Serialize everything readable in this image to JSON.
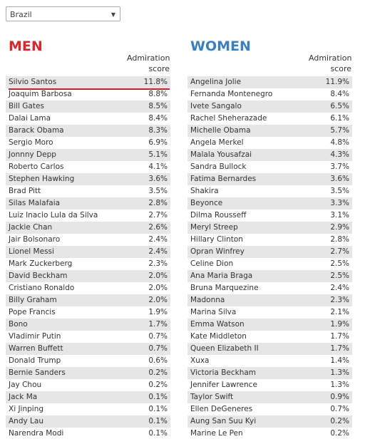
{
  "dropdown": {
    "selected": "Brazil"
  },
  "men": {
    "title": "MEN",
    "score_header": "Admiration score",
    "rows": [
      [
        "Silvio Santos",
        "11.8%"
      ],
      [
        "Joaquim Barbosa",
        "8.8%"
      ],
      [
        "Bill Gates",
        "8.5%"
      ],
      [
        "Dalai Lama",
        "8.4%"
      ],
      [
        "Barack Obama",
        "8.3%"
      ],
      [
        "Sergio Moro",
        "6.9%"
      ],
      [
        "Jonnny Depp",
        "5.1%"
      ],
      [
        "Roberto Carlos",
        "4.1%"
      ],
      [
        "Stephen Hawking",
        "3.6%"
      ],
      [
        "Brad Pitt",
        "3.5%"
      ],
      [
        "Silas Malafaia",
        "2.8%"
      ],
      [
        "Luiz Inacio Lula da Silva",
        "2.7%"
      ],
      [
        "Jackie Chan",
        "2.6%"
      ],
      [
        "Jair Bolsonaro",
        "2.4%"
      ],
      [
        "Lionel Messi",
        "2.4%"
      ],
      [
        "Mark Zuckerberg",
        "2.3%"
      ],
      [
        "David Beckham",
        "2.0%"
      ],
      [
        "Cristiano Ronaldo",
        "2.0%"
      ],
      [
        "Billy Graham",
        "2.0%"
      ],
      [
        "Pope Francis",
        "1.9%"
      ],
      [
        "Bono",
        "1.7%"
      ],
      [
        "Vladimir Putin",
        "0.7%"
      ],
      [
        "Warren Buffett",
        "0.7%"
      ],
      [
        "Donald Trump",
        "0.6%"
      ],
      [
        "Bernie Sanders",
        "0.2%"
      ],
      [
        "Jay Chou",
        "0.2%"
      ],
      [
        "Jack Ma",
        "0.1%"
      ],
      [
        "Xi Jinping",
        "0.1%"
      ],
      [
        "Andy Lau",
        "0.1%"
      ],
      [
        "Narendra Modi",
        "0.1%"
      ]
    ]
  },
  "women": {
    "title": "WOMEN",
    "score_header": "Admiration score",
    "rows": [
      [
        "Angelina Jolie",
        "11.9%"
      ],
      [
        "Fernanda Montenegro",
        "8.4%"
      ],
      [
        "Ivete Sangalo",
        "6.5%"
      ],
      [
        "Rachel Sheherazade",
        "6.1%"
      ],
      [
        "Michelle Obama",
        "5.7%"
      ],
      [
        "Angela Merkel",
        "4.8%"
      ],
      [
        "Malala Yousafzai",
        "4.3%"
      ],
      [
        "Sandra Bullock",
        "3.7%"
      ],
      [
        "Fatima Bernardes",
        "3.6%"
      ],
      [
        "Shakira",
        "3.5%"
      ],
      [
        "Beyonce",
        "3.3%"
      ],
      [
        "Dilma Rousseff",
        "3.1%"
      ],
      [
        "Meryl Streep",
        "2.9%"
      ],
      [
        "Hillary Clinton",
        "2.8%"
      ],
      [
        "Opran Winfrey",
        "2.7%"
      ],
      [
        "Celine Dion",
        "2.5%"
      ],
      [
        "Ana Maria Braga",
        "2.5%"
      ],
      [
        "Bruna Marquezine",
        "2.4%"
      ],
      [
        "Madonna",
        "2.3%"
      ],
      [
        "Marina Silva",
        "2.1%"
      ],
      [
        "Emma Watson",
        "1.9%"
      ],
      [
        "Kate Middleton",
        "1.7%"
      ],
      [
        "Queen Elizabeth II",
        "1.7%"
      ],
      [
        "Xuxa",
        "1.4%"
      ],
      [
        "Victoria Beckham",
        "1.3%"
      ],
      [
        "Jennifer Lawrence",
        "1.3%"
      ],
      [
        "Taylor Swift",
        "0.9%"
      ],
      [
        "Ellen DeGeneres",
        "0.7%"
      ],
      [
        "Aung San Suu Kyi",
        "0.2%"
      ],
      [
        "Marine Le Pen",
        "0.2%"
      ]
    ]
  }
}
